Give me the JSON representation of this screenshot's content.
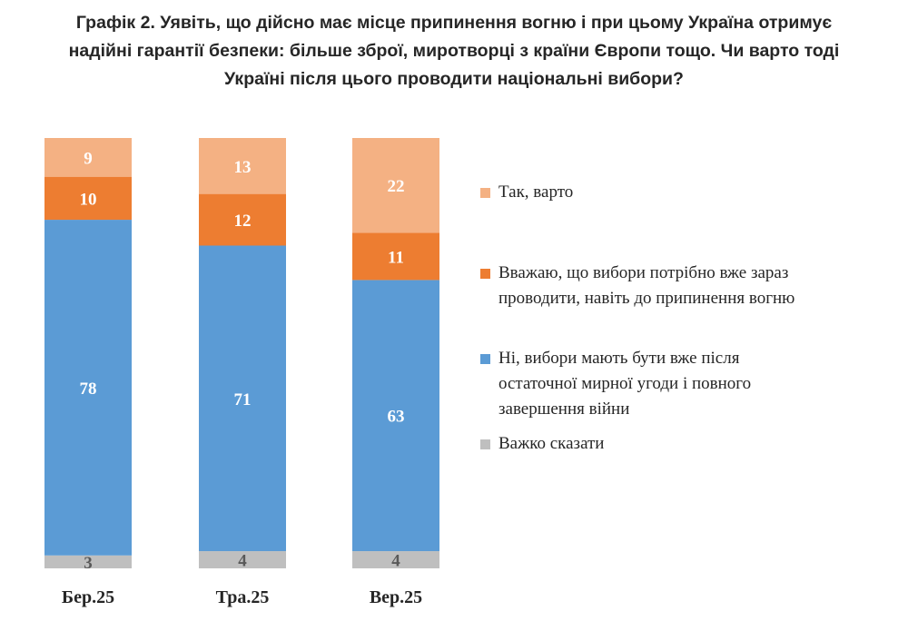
{
  "chart_data": {
    "type": "bar",
    "stacked": true,
    "title": [
      "Графік 2. Уявіть, що дійсно має місце припинення вогню і при цьому Україна отримує",
      "надійні гарантії безпеки: більше зброї, миротворці з країни Європи тощо. Чи варто тоді",
      "Україні після цього проводити національні вибори?"
    ],
    "categories": [
      "Бер.25",
      "Тра.25",
      "Вер.25"
    ],
    "series": [
      {
        "name": "Важко сказати",
        "color": "#bfbfbf",
        "label_color": "#595959",
        "values": [
          3,
          4,
          4
        ]
      },
      {
        "name": "Ні, вибори мають бути вже після остаточної мирної угоди і повного завершення війни",
        "color": "#5b9bd5",
        "label_color": "#ffffff",
        "values": [
          78,
          71,
          63
        ]
      },
      {
        "name": "Вважаю, що вибори потрібно вже зараз проводити, навіть до припинення вогню",
        "color": "#ed7d31",
        "label_color": "#ffffff",
        "values": [
          10,
          12,
          11
        ]
      },
      {
        "name": "Так, варто",
        "color": "#f4b183",
        "label_color": "#ffffff",
        "values": [
          9,
          13,
          22
        ]
      }
    ],
    "ylim": [
      0,
      100
    ],
    "grid": false,
    "legend_position": "right"
  },
  "legend": {
    "items": [
      {
        "lines": [
          "Так, варто"
        ],
        "color": "#f4b183"
      },
      {
        "lines": [
          "Вважаю, що вибори потрібно вже зараз",
          "проводити, навіть до припинення вогню"
        ],
        "color": "#ed7d31"
      },
      {
        "lines": [
          "Ні, вибори мають бути вже після",
          "остаточної мирної угоди і повного",
          "завершення війни"
        ],
        "color": "#5b9bd5"
      },
      {
        "lines": [
          "Важко сказати"
        ],
        "color": "#bfbfbf"
      }
    ]
  }
}
